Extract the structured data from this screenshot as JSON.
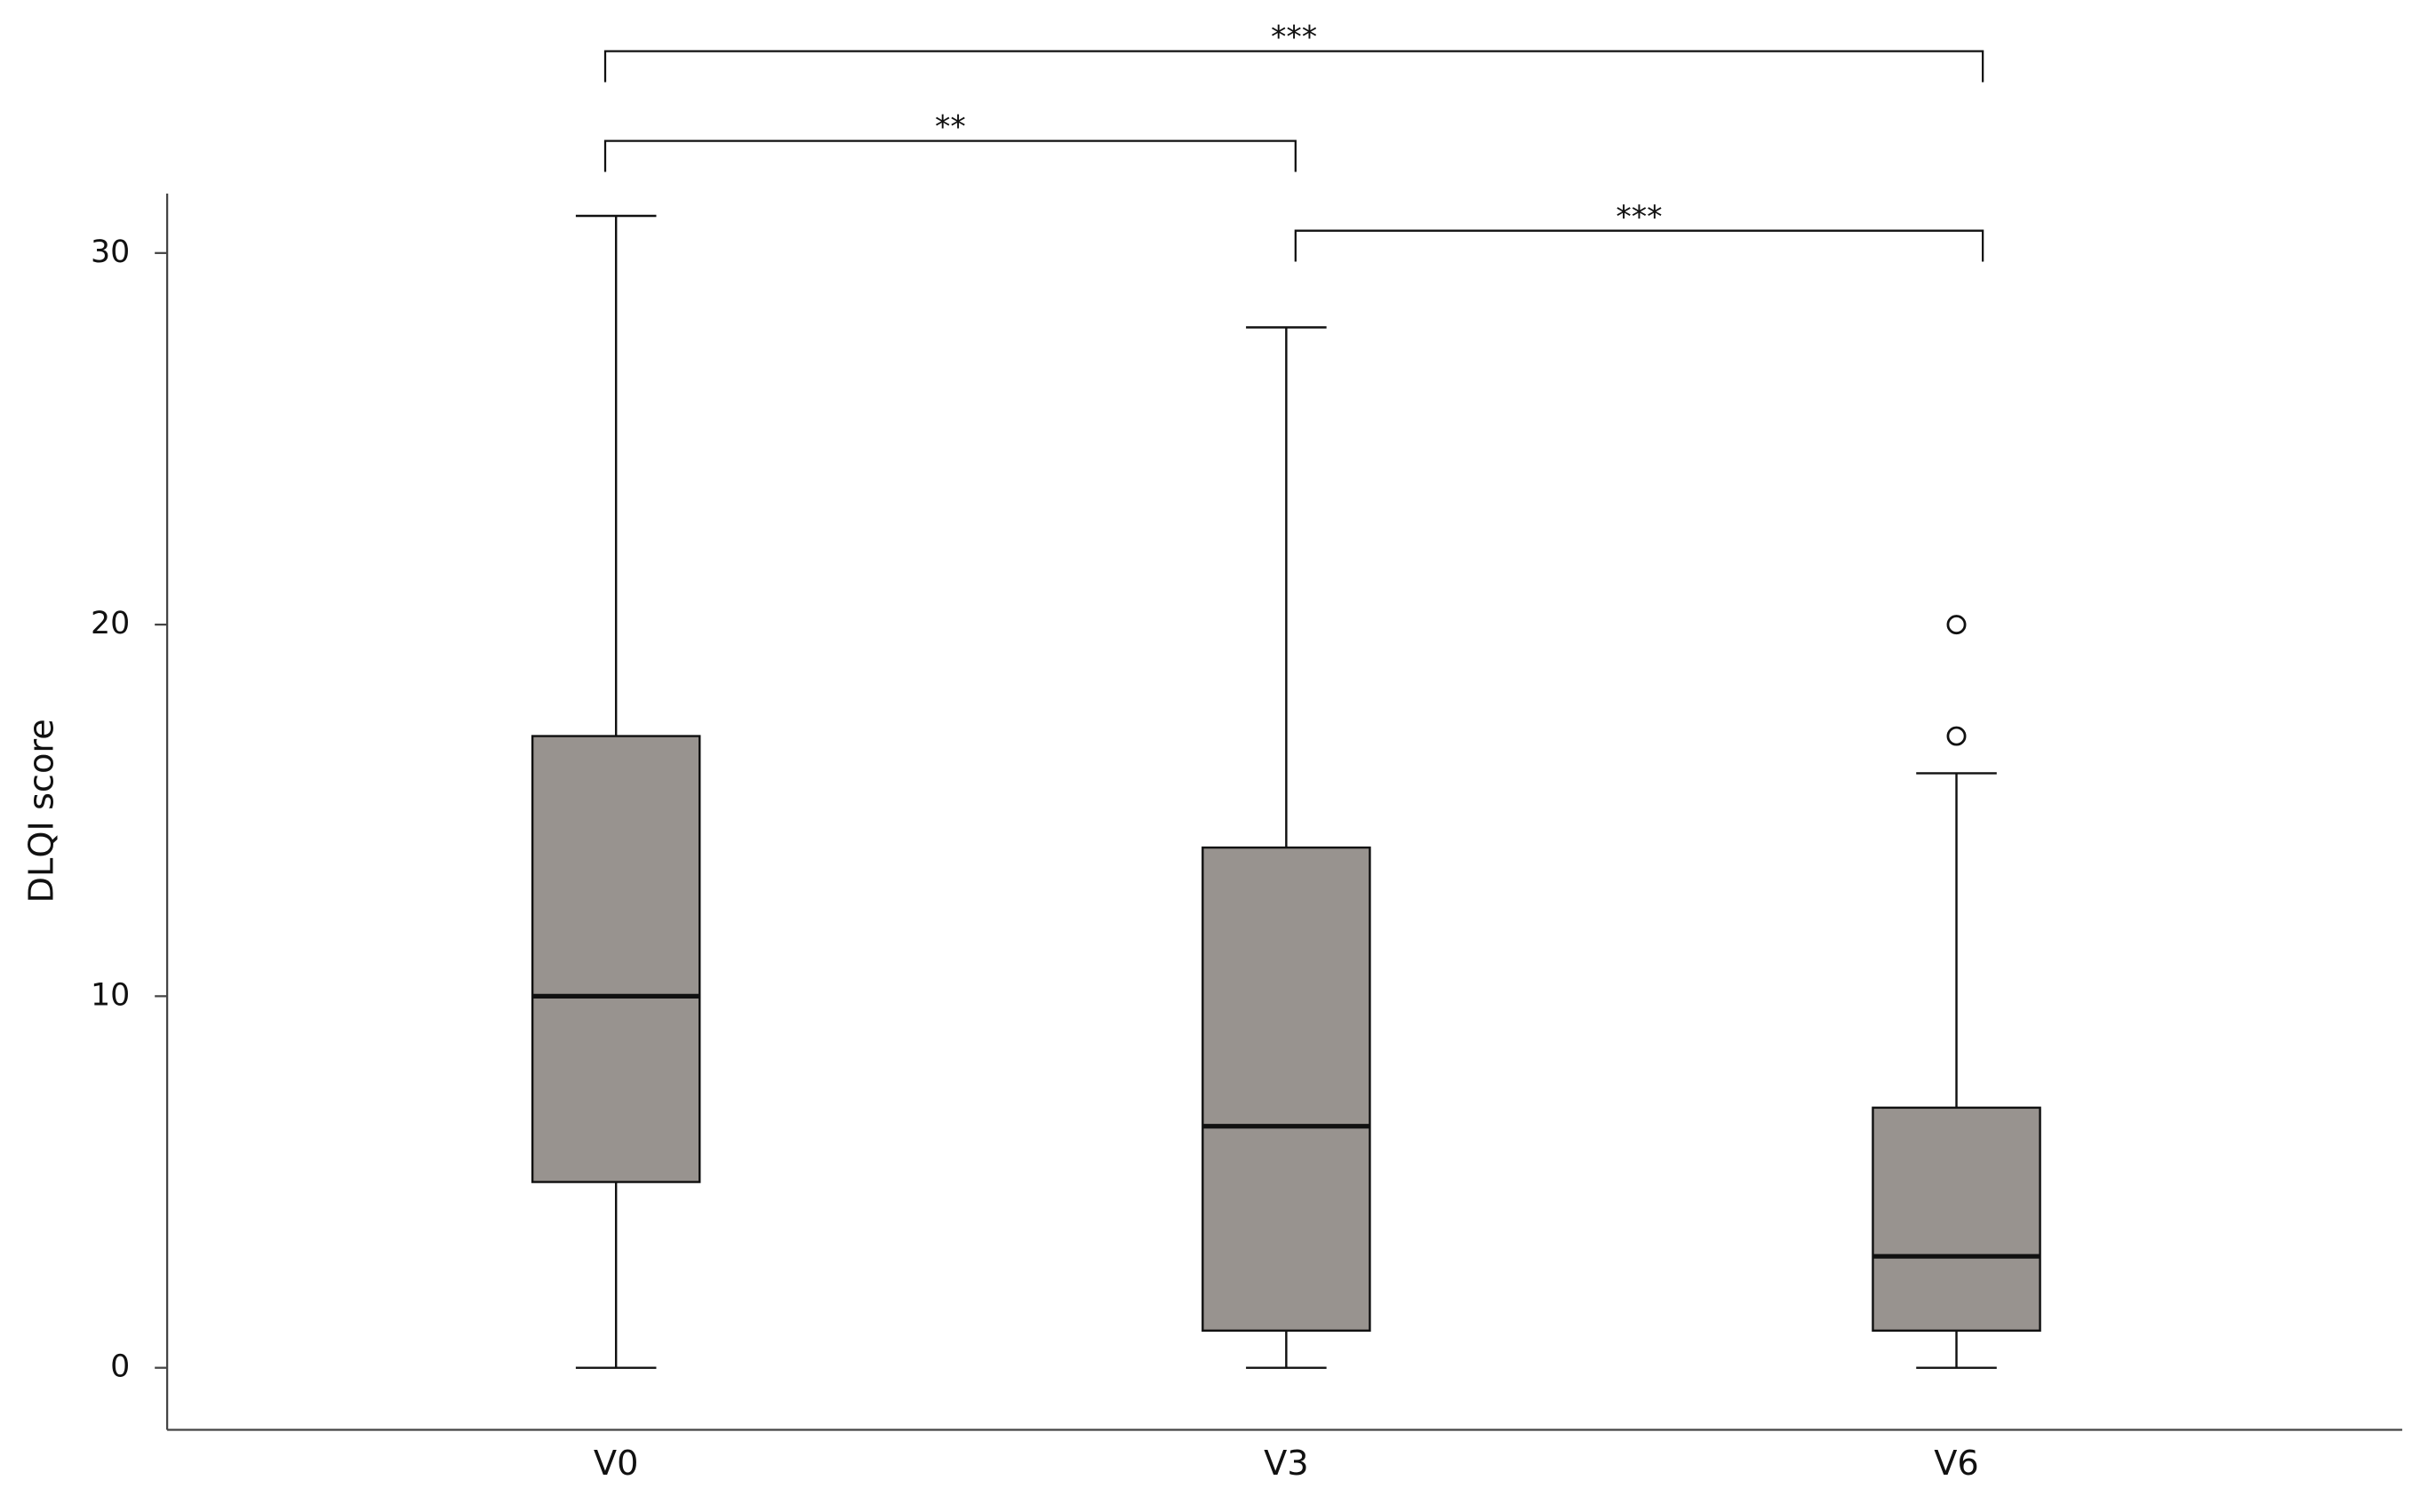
{
  "chart_data": {
    "type": "box",
    "y_label": "DLQI score",
    "categories": [
      "V0",
      "V3",
      "V6"
    ],
    "boxes": [
      {
        "min": 0,
        "q1": 5,
        "median": 10,
        "q3": 17,
        "max": 31,
        "outliers": []
      },
      {
        "min": 0,
        "q1": 1,
        "median": 6.5,
        "q3": 14,
        "max": 28,
        "outliers": []
      },
      {
        "min": 0,
        "q1": 1,
        "median": 3,
        "q3": 7,
        "max": 16,
        "outliers": [
          17,
          20
        ]
      }
    ],
    "color": "#98938f",
    "ylim": [
      -1.67,
      31.6
    ],
    "yticks": [
      0,
      10,
      20,
      30
    ],
    "comparisons": [
      {
        "from": "V0",
        "to": "V6",
        "label": "***"
      },
      {
        "from": "V0",
        "to": "V3",
        "label": "**"
      },
      {
        "from": "V3",
        "to": "V6",
        "label": "***"
      }
    ]
  }
}
